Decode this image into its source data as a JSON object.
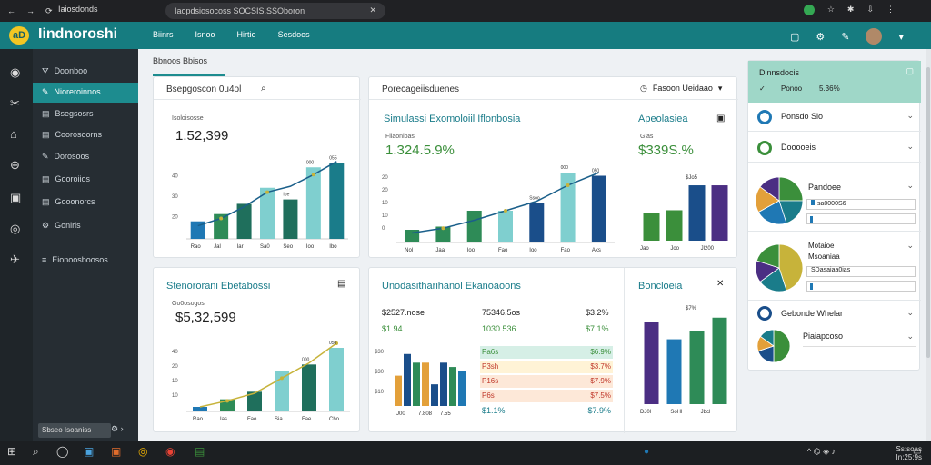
{
  "browser": {
    "tab_title": "Iaiosdonds",
    "url": "Iaopdsiosocoss SOCSIS.SSOboron",
    "close": "✕"
  },
  "app": {
    "logo": "aD",
    "brand": "Iindnoroshi",
    "nav": [
      "Biinrs",
      "Isnoo",
      "Hirtio",
      "Sesdoos"
    ]
  },
  "sidebar": {
    "items": [
      "Doonboo",
      "Nioreroinnos",
      "Bsegsosrs",
      "Coorosoorns",
      "Dorosoos",
      "Gooroiios",
      "Gooonorcs",
      "Goniris",
      "Eionoosboosos"
    ],
    "active_index": 1,
    "tooltip": "Sbseo Isoaniss"
  },
  "main": {
    "title": "Bbnoos Bbisos"
  },
  "card1": {
    "title": "Bsepgoscon 0u4ol",
    "value": "1.52,399",
    "sub": "Isoloisosse",
    "ylabels": [
      "40",
      "30",
      "20"
    ],
    "xlabels": [
      "Rao",
      "Jal",
      "Iar",
      "Sa0",
      "Seo",
      "Ioo",
      "Ibo"
    ],
    "values": [
      12,
      17,
      24,
      35,
      27,
      49,
      52
    ],
    "line": [
      9,
      14,
      22,
      32,
      36,
      44,
      53
    ],
    "labels": [
      "Ioe",
      "000",
      "055"
    ]
  },
  "card2": {
    "title": "Porecageiisduenes",
    "filter": "Fasoon Ueidaao",
    "heading": "Simulassi Exomoloiil Iflonbosia",
    "value": "1.324.5.9%",
    "sub": "Fllaonioas",
    "ylabels": [
      "20",
      "20",
      "10",
      "10",
      "0"
    ],
    "xlabels": [
      "Nol",
      "Jaa",
      "Ioo",
      "Fao",
      "Ioo",
      "Fao",
      "Aks"
    ],
    "values": [
      8,
      10,
      20,
      20,
      25,
      44,
      42
    ],
    "line": [
      6,
      9,
      14,
      20,
      26,
      36,
      44
    ],
    "colors": [
      "#2e8b57",
      "#2e8b57",
      "#2e8b57",
      "#7fcfcf",
      "#1a4e8a",
      "#7fcfcf",
      "#1a4e8a"
    ],
    "labels": [
      "Ssoo",
      "000",
      "050"
    ],
    "side_title": "Apeolasiea",
    "side_value": "$339S.%",
    "side_sub": "Glas",
    "side_xlabels": [
      "Jao",
      "Joo",
      "Jl200"
    ],
    "side_values": [
      20,
      22,
      40,
      40
    ],
    "side_top": "$Jo5"
  },
  "card3": {
    "title": "Stenororani Ebetabossi",
    "value": "$5,32,599",
    "sub": "Go0osogos",
    "ylabels": [
      "40",
      "20",
      "10",
      "10"
    ],
    "xlabels": [
      "Rao",
      "Ias",
      "Fao",
      "Sia",
      "Fae",
      "Cho"
    ],
    "values": [
      3,
      8,
      13,
      27,
      31,
      42
    ],
    "line": [
      3,
      7,
      12,
      22,
      32,
      45
    ],
    "labels": [
      "000",
      "050"
    ]
  },
  "card4": {
    "title": "Unodasitharihanol Ekanoaoons",
    "head_labels": [
      "$2527.nose",
      "75346.5os",
      "$3.2%"
    ],
    "head_values": [
      "$1.94",
      "1030.536",
      "$7.1%"
    ],
    "rows": [
      {
        "l": "Pa6s",
        "r": "$6.9%",
        "c": "#d6efe6"
      },
      {
        "l": "P3sh",
        "r": "$3.7%",
        "c": "#fff3d6"
      },
      {
        "l": "P16s",
        "r": "$7.9%",
        "c": "#fde8d8"
      },
      {
        "l": "P6s",
        "r": "$7.5%",
        "c": "#fde8d8"
      }
    ],
    "foot_label": "$1.1%",
    "foot_value": "$7.9%",
    "ylabels": [
      "$30",
      "$30",
      "$10"
    ],
    "xlabels": [
      "J00",
      "7.808",
      "7.55"
    ],
    "values": [
      14,
      24,
      20,
      20,
      10,
      20,
      18,
      16
    ],
    "colors": [
      "#e3a03a",
      "#1a4e8a",
      "#2e8b57",
      "#e3a03a",
      "#1a4e8a",
      "#1a4e8a",
      "#2e8b57",
      "#1f78b4"
    ],
    "side_title": "Boncloeia",
    "side_xlabels": [
      "DJ0l",
      "SoHl",
      "Jbcl"
    ],
    "side_values": [
      38,
      30,
      34,
      40
    ],
    "side_colors": [
      "#4b2e83",
      "#1f78b4",
      "#2e8b57",
      "#2e8b57"
    ],
    "side_top": "$7%"
  },
  "rpanel": {
    "head_title": "Dinnsdocis",
    "head_sub": "Ponoo",
    "head_value": "5.36%",
    "rows": [
      "Ponsdo Sio",
      "Dooooeis",
      "Pandoee",
      "Motaioe Msoaniaa",
      "Gebonde Whelar",
      "Piaiapcoso"
    ],
    "progress": [
      "sa0000S6",
      "SDasaiaa0ias"
    ]
  },
  "taskbar": {
    "clock": "Ss:soas\nIn:25:9s"
  }
}
